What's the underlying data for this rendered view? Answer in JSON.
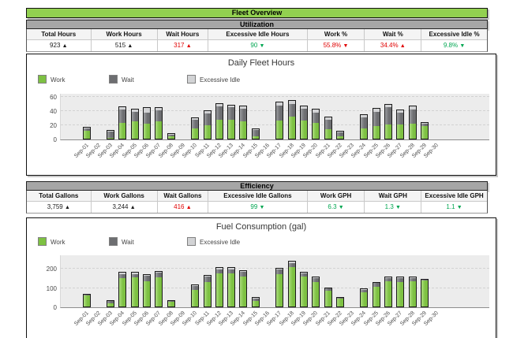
{
  "page_title": "Fleet Overview",
  "icons": {
    "trend-up": "▲",
    "trend-down": "▼"
  },
  "colors": {
    "title_bar_green": "#92D050",
    "section_bar_gray": "#A6A6A6",
    "work_green": "#7DC142",
    "wait_gray": "#6D6E71",
    "excessive_idle_gray": "#D2D3D5",
    "neutral_text": "#1a1a1a",
    "bad_red": "#E00000",
    "good_green": "#00A651"
  },
  "sections": [
    {
      "name": "Utilization",
      "table": {
        "columns": [
          "Total Hours",
          "Work Hours",
          "Wait Hours",
          "Excessive Idle Hours",
          "Work %",
          "Wait %",
          "Excessive Idle %"
        ],
        "values": [
          {
            "text": "923",
            "arrow": "up",
            "color": "#1a1a1a"
          },
          {
            "text": "515",
            "arrow": "up",
            "color": "#1a1a1a"
          },
          {
            "text": "317",
            "arrow": "up",
            "color": "#E00000"
          },
          {
            "text": "90",
            "arrow": "down",
            "color": "#00A651"
          },
          {
            "text": "55.8%",
            "arrow": "down",
            "color": "#E00000"
          },
          {
            "text": "34.4%",
            "arrow": "up",
            "color": "#E00000"
          },
          {
            "text": "9.8%",
            "arrow": "down",
            "color": "#00A651"
          }
        ]
      }
    },
    {
      "name": "Efficiency",
      "table": {
        "columns": [
          "Total Gallons",
          "Work Gallons",
          "Wait Gallons",
          "Excessive Idle Gallons",
          "Work GPH",
          "Wait GPH",
          "Excessive Idle GPH"
        ],
        "values": [
          {
            "text": "3,759",
            "arrow": "up",
            "color": "#1a1a1a"
          },
          {
            "text": "3,244",
            "arrow": "up",
            "color": "#1a1a1a"
          },
          {
            "text": "416",
            "arrow": "up",
            "color": "#E00000"
          },
          {
            "text": "99",
            "arrow": "down",
            "color": "#00A651"
          },
          {
            "text": "6.3",
            "arrow": "down",
            "color": "#00A651"
          },
          {
            "text": "1.3",
            "arrow": "down",
            "color": "#00A651"
          },
          {
            "text": "1.1",
            "arrow": "down",
            "color": "#00A651"
          }
        ]
      }
    }
  ],
  "chart_data": [
    {
      "type": "bar",
      "stacked": true,
      "title": "Daily Fleet Hours",
      "legend_position": "top-left",
      "grid": "dashed-horizontal",
      "categories": [
        "Sep-01",
        "Sep-02",
        "Sep-03",
        "Sep-04",
        "Sep-05",
        "Sep-06",
        "Sep-07",
        "Sep-08",
        "Sep-09",
        "Sep-10",
        "Sep-11",
        "Sep-12",
        "Sep-13",
        "Sep-14",
        "Sep-15",
        "Sep-16",
        "Sep-17",
        "Sep-18",
        "Sep-19",
        "Sep-20",
        "Sep-21",
        "Sep-22",
        "Sep-23",
        "Sep-24",
        "Sep-25",
        "Sep-26",
        "Sep-27",
        "Sep-28",
        "Sep-29",
        "Sep-30"
      ],
      "series": [
        {
          "name": "Work",
          "color": "#7DC142",
          "values": [
            13,
            0,
            3,
            24,
            26,
            23,
            26,
            5,
            0,
            17,
            21,
            29,
            29,
            26,
            5,
            0,
            28,
            33,
            28,
            24,
            16,
            6,
            0,
            17,
            20,
            22,
            22,
            23,
            20,
            0
          ]
        },
        {
          "name": "Wait",
          "color": "#6D6E71",
          "values": [
            4,
            0,
            9,
            19,
            14,
            16,
            16,
            3,
            0,
            12,
            17,
            19,
            17,
            18,
            9,
            0,
            21,
            18,
            16,
            15,
            13,
            5,
            0,
            15,
            20,
            24,
            17,
            20,
            3,
            0
          ]
        },
        {
          "name": "Excessive Idle",
          "color": "#D2D3D5",
          "values": [
            1,
            0,
            1,
            3,
            3,
            6,
            3,
            1,
            0,
            2,
            3,
            3,
            3,
            4,
            1,
            0,
            4,
            4,
            4,
            4,
            3,
            1,
            0,
            3,
            4,
            4,
            3,
            4,
            1,
            0
          ]
        }
      ],
      "ylim": [
        0,
        64
      ],
      "yticks": [
        0,
        20,
        40,
        60
      ],
      "xlabel": "",
      "ylabel": ""
    },
    {
      "type": "bar",
      "stacked": true,
      "title": "Fuel Consumption (gal)",
      "legend_position": "top-left",
      "grid": "dashed-horizontal",
      "categories": [
        "Sep-01",
        "Sep-02",
        "Sep-03",
        "Sep-04",
        "Sep-05",
        "Sep-06",
        "Sep-07",
        "Sep-08",
        "Sep-09",
        "Sep-10",
        "Sep-11",
        "Sep-12",
        "Sep-13",
        "Sep-14",
        "Sep-15",
        "Sep-16",
        "Sep-17",
        "Sep-18",
        "Sep-19",
        "Sep-20",
        "Sep-21",
        "Sep-22",
        "Sep-23",
        "Sep-24",
        "Sep-25",
        "Sep-26",
        "Sep-27",
        "Sep-28",
        "Sep-29",
        "Sep-30"
      ],
      "series": [
        {
          "name": "Work",
          "color": "#7DC142",
          "values": [
            65,
            0,
            24,
            155,
            160,
            140,
            158,
            32,
            0,
            95,
            133,
            180,
            178,
            165,
            38,
            0,
            175,
            212,
            162,
            133,
            90,
            50,
            0,
            83,
            109,
            140,
            133,
            140,
            143,
            0
          ]
        },
        {
          "name": "Wait",
          "color": "#6D6E71",
          "values": [
            3,
            0,
            12,
            22,
            17,
            28,
            27,
            4,
            0,
            18,
            30,
            22,
            24,
            22,
            12,
            0,
            25,
            23,
            20,
            21,
            12,
            3,
            0,
            12,
            20,
            16,
            22,
            15,
            3,
            0
          ]
        },
        {
          "name": "Excessive Idle",
          "color": "#D2D3D5",
          "values": [
            2,
            0,
            2,
            8,
            8,
            4,
            5,
            2,
            0,
            5,
            5,
            5,
            5,
            5,
            2,
            0,
            5,
            5,
            4,
            4,
            2,
            1,
            0,
            2,
            4,
            3,
            4,
            4,
            1,
            0
          ]
        }
      ],
      "ylim": [
        0,
        270
      ],
      "yticks": [
        0,
        100,
        200
      ],
      "xlabel": "",
      "ylabel": ""
    }
  ]
}
